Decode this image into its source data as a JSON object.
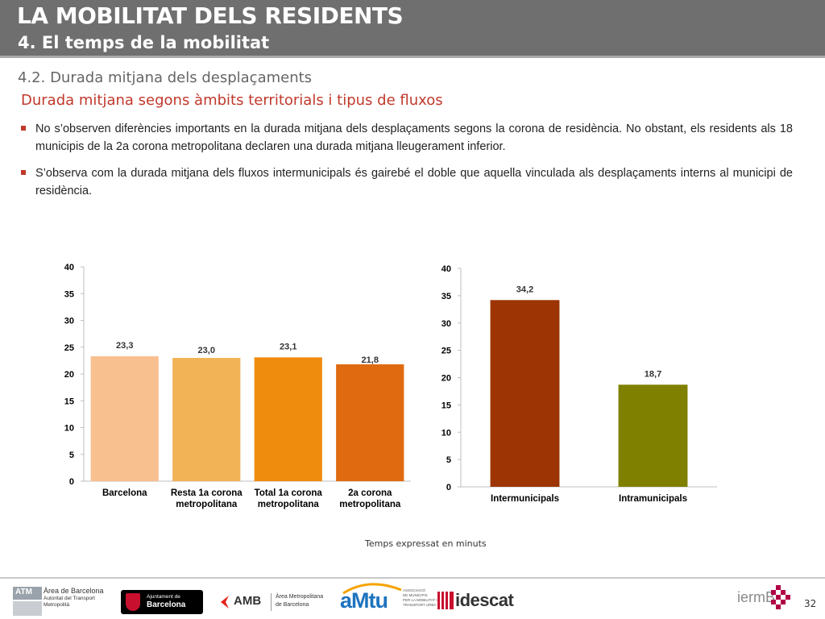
{
  "header": {
    "title": "LA MOBILITAT DELS RESIDENTS",
    "subtitle": "4. El temps de la mobilitat"
  },
  "section": {
    "title": "4.2. Durada mitjana dels desplaçaments",
    "subtitle": "Durada mitjana segons àmbits territorials i tipus de fluxos"
  },
  "bullets": [
    "No s’observen diferències importants en la durada mitjana dels desplaçaments segons la corona de residència. No obstant, els residents als 18 municipis de la 2a corona metropolitana declaren una durada mitjana lleugerament inferior.",
    "S’observa com la durada mitjana dels fluxos intermunicipals és gairebé el doble que aquella vinculada als desplaçaments interns al municipi de residència."
  ],
  "chart_data": [
    {
      "type": "bar",
      "categories": [
        "Barcelona",
        "Resta 1a corona metropolitana",
        "Total 1a corona metropolitana",
        "2a corona metropolitana"
      ],
      "category_lines": [
        [
          "Barcelona"
        ],
        [
          "Resta 1a corona",
          "metropolitana"
        ],
        [
          "Total 1a corona",
          "metropolitana"
        ],
        [
          "2a corona",
          "metropolitana"
        ]
      ],
      "values": [
        23.3,
        23.0,
        23.1,
        21.8
      ],
      "value_labels": [
        "23,3",
        "23,0",
        "23,1",
        "21,8"
      ],
      "colors": [
        "#f8bf8f",
        "#f2b256",
        "#ef8c0e",
        "#e06a10"
      ],
      "ylim": [
        0,
        40
      ],
      "yticks": [
        0,
        5,
        10,
        15,
        20,
        25,
        30,
        35,
        40
      ],
      "grid": false
    },
    {
      "type": "bar",
      "categories": [
        "Intermunicipals",
        "Intramunicipals"
      ],
      "category_lines": [
        [
          "Intermunicipals"
        ],
        [
          "Intramunicipals"
        ]
      ],
      "values": [
        34.2,
        18.7
      ],
      "value_labels": [
        "34,2",
        "18,7"
      ],
      "colors": [
        "#9c3503",
        "#7f7f00"
      ],
      "ylim": [
        0,
        40
      ],
      "yticks": [
        0,
        5,
        10,
        15,
        20,
        25,
        30,
        35,
        40
      ],
      "grid": false
    }
  ],
  "note": "Temps expressat en minuts",
  "footer": {
    "logos": {
      "atm": {
        "badge": "ATM",
        "lines": [
          "Àrea de Barcelona",
          "Autoritat del Transport",
          "Metropolità"
        ]
      },
      "ajuntament": {
        "lines": [
          "Ajuntament de",
          "Barcelona"
        ]
      },
      "amb": {
        "name": "AMB",
        "lines": [
          "Àrea Metropolitana",
          "de Barcelona"
        ]
      },
      "amtu": {
        "name": "aMtu",
        "lines": [
          "ASSOCIACIÓ",
          "DE MUNICIPIS",
          "PER LA MOBILITAT I EL",
          "TRANSPORT URBÀ"
        ]
      },
      "idescat": {
        "name": "idescat"
      },
      "iermb": {
        "name": "iermB"
      }
    },
    "page_number": "32"
  }
}
